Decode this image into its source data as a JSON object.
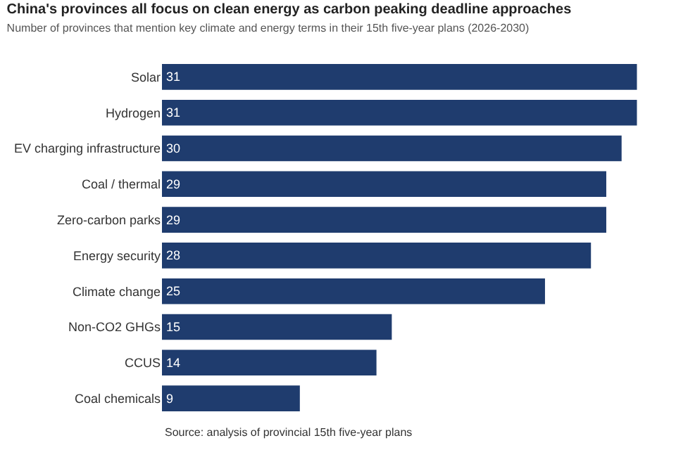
{
  "chart_data": {
    "type": "bar",
    "orientation": "horizontal",
    "title": "China's provinces all focus on clean energy as carbon peaking deadline approaches",
    "subtitle": "Number of provinces that mention key climate and energy terms in their 15th five-year plans (2026-2030)",
    "categories": [
      "Solar",
      "Hydrogen",
      "EV charging infrastructure",
      "Coal / thermal",
      "Zero-carbon parks",
      "Energy security",
      "Climate change",
      "Non-CO2 GHGs",
      "CCUS",
      "Coal chemicals"
    ],
    "values": [
      31,
      31,
      30,
      29,
      29,
      28,
      25,
      15,
      14,
      9
    ],
    "color": "#1f3c6e",
    "data_labels": true,
    "legend": false,
    "tick_labels": "y",
    "annotations": [
      "Source: analysis of provincial 15th five-year plans"
    ]
  }
}
